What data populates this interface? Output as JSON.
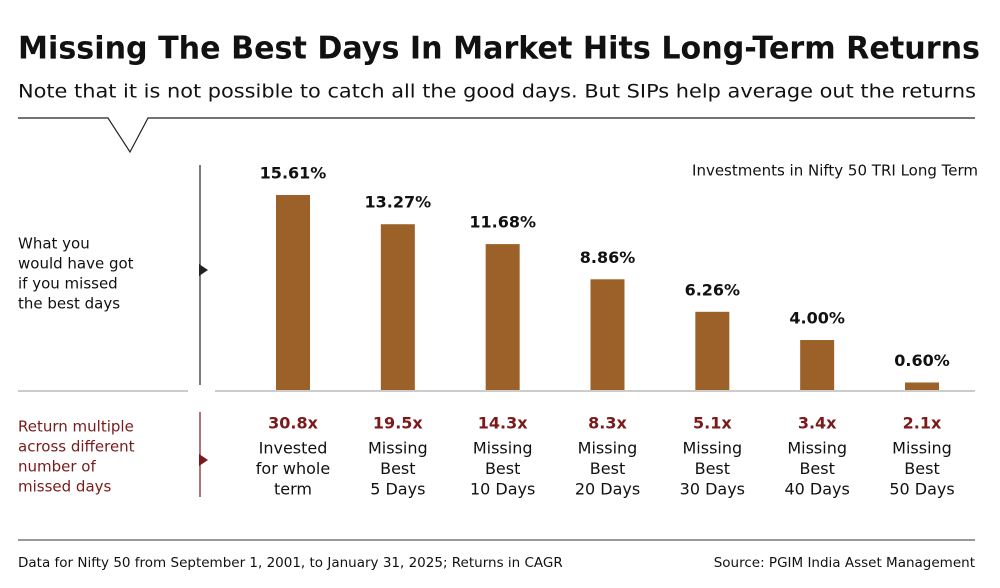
{
  "chart_data": {
    "type": "bar",
    "title": "Missing The Best Days In Market Hits Long-Term Returns",
    "subtitle": "Note that it is not possible to catch all the good days. But SIPs help average out the returns",
    "annotation": "Investments in Nifty 50 TRI Long Term",
    "left_label_top": [
      "What you",
      "would have got",
      "if you missed",
      "the best days"
    ],
    "left_label_bottom": [
      "Return multiple",
      "across different",
      "number of",
      "missed days"
    ],
    "categories": [
      [
        "Invested",
        "for whole",
        "term"
      ],
      [
        "Missing",
        "Best",
        "5 Days"
      ],
      [
        "Missing",
        "Best",
        "10 Days"
      ],
      [
        "Missing",
        "Best",
        "20 Days"
      ],
      [
        "Missing",
        "Best",
        "30 Days"
      ],
      [
        "Missing",
        "Best",
        "40 Days"
      ],
      [
        "Missing",
        "Best",
        "50 Days"
      ]
    ],
    "values": [
      15.61,
      13.27,
      11.68,
      8.86,
      6.26,
      4.0,
      0.6
    ],
    "value_labels": [
      "15.61%",
      "13.27%",
      "11.68%",
      "8.86%",
      "6.26%",
      "4.00%",
      "0.60%"
    ],
    "return_multiples": [
      "30.8x",
      "19.5x",
      "14.3x",
      "8.3x",
      "5.1x",
      "3.4x",
      "2.1x"
    ],
    "color": "#9b6128",
    "footer_left": "Data for Nifty 50 from September 1, 2001, to January 31, 2025; Returns in CAGR",
    "footer_right": "Source: PGIM India Asset Management"
  }
}
